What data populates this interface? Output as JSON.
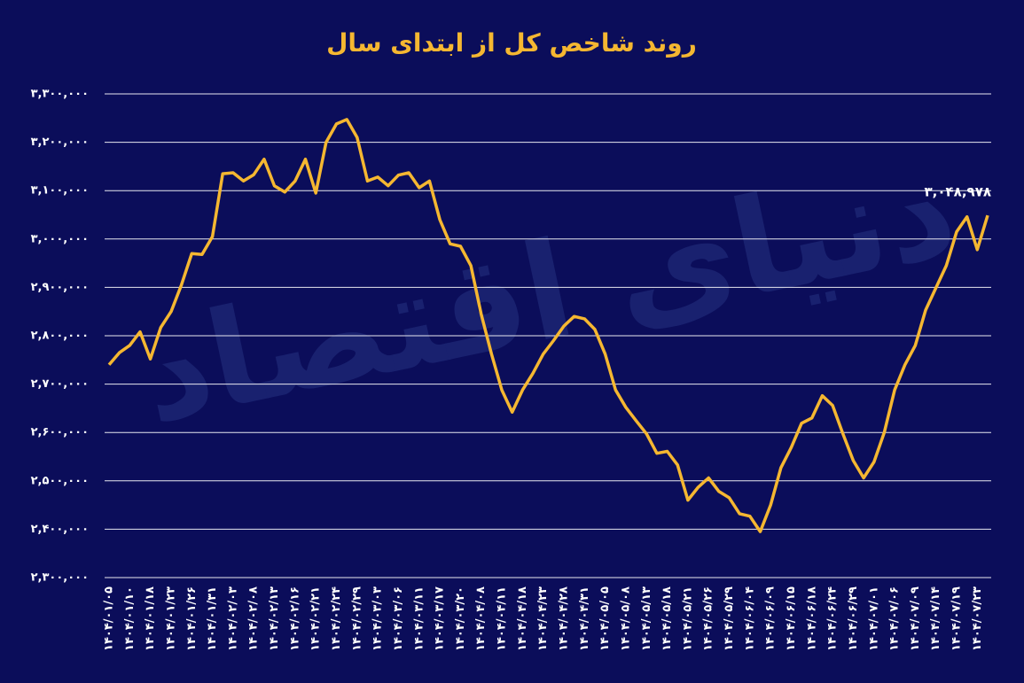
{
  "chart_data": {
    "type": "line",
    "title": "روند شاخص کل از ابتدای سال",
    "watermark": "دنیای اقتصاد",
    "categories": [
      "۱۴۰۴/۰۱/۰۵",
      null,
      "۱۴۰۴/۰۱/۱۰",
      null,
      "۱۴۰۴/۰۱/۱۸",
      null,
      "۱۴۰۴/۰۱/۲۳",
      null,
      "۱۴۰۴/۰۱/۲۶",
      null,
      "۱۴۰۴/۰۱/۳۱",
      null,
      "۱۴۰۴/۰۲/۰۳",
      null,
      "۱۴۰۴/۰۲/۰۸",
      null,
      "۱۴۰۴/۰۲/۱۳",
      null,
      "۱۴۰۴/۰۲/۱۶",
      null,
      "۱۴۰۴/۰۲/۲۱",
      null,
      "۱۴۰۴/۰۲/۲۴",
      null,
      "۱۴۰۴/۰۲/۲۹",
      null,
      "۱۴۰۴/۰۳/۰۳",
      null,
      "۱۴۰۴/۰۳/۰۶",
      null,
      "۱۴۰۴/۰۳/۱۱",
      null,
      "۱۴۰۴/۰۳/۱۷",
      null,
      "۱۴۰۴/۰۳/۲۰",
      null,
      "۱۴۰۴/۰۴/۰۸",
      null,
      "۱۴۰۴/۰۴/۱۱",
      null,
      "۱۴۰۴/۰۴/۱۸",
      null,
      "۱۴۰۴/۰۴/۲۳",
      null,
      "۱۴۰۴/۰۴/۲۸",
      null,
      "۱۴۰۴/۰۴/۳۱",
      null,
      "۱۴۰۴/۰۵/۰۵",
      null,
      "۱۴۰۴/۰۵/۰۸",
      null,
      "۱۴۰۴/۰۵/۱۳",
      null,
      "۱۴۰۴/۰۵/۱۸",
      null,
      "۱۴۰۴/۰۵/۲۱",
      null,
      "۱۴۰۴/۰۵/۲۶",
      null,
      "۱۴۰۴/۰۵/۲۹",
      null,
      "۱۴۰۴/۰۶/۰۴",
      null,
      "۱۴۰۴/۰۶/۰۹",
      null,
      "۱۴۰۴/۰۶/۱۵",
      null,
      "۱۴۰۴/۰۶/۱۸",
      null,
      "۱۴۰۴/۰۶/۲۴",
      null,
      "۱۴۰۴/۰۶/۲۹",
      null,
      "۱۴۰۴/۰۷/۰۱",
      null,
      "۱۴۰۴/۰۷/۰۶",
      null,
      "۱۴۰۴/۰۷/۰۹",
      null,
      "۱۴۰۴/۰۷/۱۴",
      null,
      "۱۴۰۴/۰۷/۱۹",
      null,
      "۱۴۰۴/۰۷/۲۳",
      null
    ],
    "values": [
      2740000,
      2765000,
      2780000,
      2808000,
      2752000,
      2817000,
      2850000,
      2905000,
      2970000,
      2968000,
      3005000,
      3135000,
      3137000,
      3120000,
      3133000,
      3165000,
      3110000,
      3097000,
      3120000,
      3165000,
      3095000,
      3200000,
      3238000,
      3247000,
      3210000,
      3120000,
      3128000,
      3110000,
      3132000,
      3137000,
      3106000,
      3120000,
      3040000,
      2990000,
      2985000,
      2945000,
      2845000,
      2762000,
      2688000,
      2642000,
      2688000,
      2722000,
      2762000,
      2790000,
      2820000,
      2840000,
      2835000,
      2813000,
      2762000,
      2688000,
      2652000,
      2624000,
      2597000,
      2557000,
      2561000,
      2533000,
      2460000,
      2487000,
      2506000,
      2478000,
      2465000,
      2432000,
      2427000,
      2395000,
      2450000,
      2527000,
      2569000,
      2619000,
      2630000,
      2676000,
      2656000,
      2597000,
      2542000,
      2506000,
      2539000,
      2600000,
      2688000,
      2740000,
      2780000,
      2853000,
      2899000,
      2945000,
      3015000,
      3046000,
      2978000,
      3048978
    ],
    "value_labels": [
      null,
      null,
      null,
      null,
      null,
      null,
      null,
      null,
      null,
      null,
      null,
      null,
      null,
      null,
      null,
      null,
      null,
      null,
      null,
      null,
      null,
      null,
      null,
      null,
      null,
      null,
      null,
      null,
      null,
      null,
      null,
      null,
      null,
      null,
      null,
      null,
      null,
      null,
      null,
      null,
      null,
      null,
      null,
      null,
      null,
      null,
      null,
      null,
      null,
      null,
      null,
      null,
      null,
      null,
      null,
      null,
      null,
      null,
      null,
      null,
      null,
      null,
      null,
      null,
      null,
      null,
      null,
      null,
      null,
      null,
      null,
      null,
      null,
      null,
      null,
      null,
      null,
      null,
      null,
      null,
      null,
      null,
      null,
      null,
      null,
      "۳,۰۴۸,۹۷۸"
    ],
    "color": "#f5b731",
    "ylim": [
      2300000,
      3300000
    ],
    "yticks": [
      {
        "value": 2300000,
        "label": "۲,۳۰۰,۰۰۰"
      },
      {
        "value": 2400000,
        "label": "۲,۴۰۰,۰۰۰"
      },
      {
        "value": 2500000,
        "label": "۲,۵۰۰,۰۰۰"
      },
      {
        "value": 2600000,
        "label": "۲,۶۰۰,۰۰۰"
      },
      {
        "value": 2700000,
        "label": "۲,۷۰۰,۰۰۰"
      },
      {
        "value": 2800000,
        "label": "۲,۸۰۰,۰۰۰"
      },
      {
        "value": 2900000,
        "label": "۲,۹۰۰,۰۰۰"
      },
      {
        "value": 3000000,
        "label": "۳,۰۰۰,۰۰۰"
      },
      {
        "value": 3100000,
        "label": "۳,۱۰۰,۰۰۰"
      },
      {
        "value": 3200000,
        "label": "۳,۲۰۰,۰۰۰"
      },
      {
        "value": 3300000,
        "label": "۳,۳۰۰,۰۰۰"
      }
    ],
    "grid": true
  }
}
